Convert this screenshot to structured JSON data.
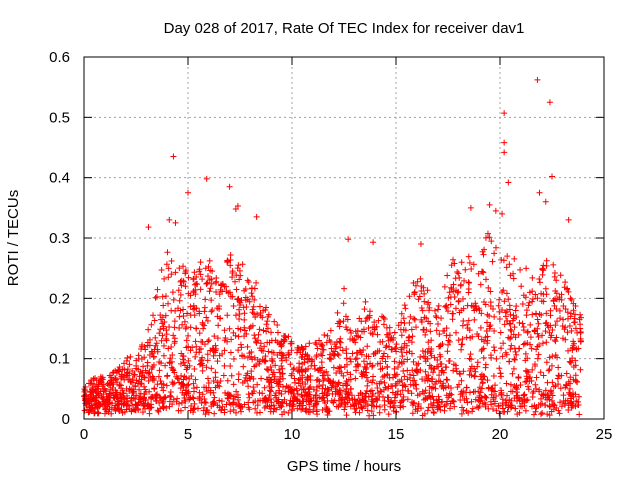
{
  "chart_data": {
    "type": "scatter",
    "title": "Day 028 of 2017, Rate Of TEC Index for receiver dav1",
    "xlabel": "GPS time / hours",
    "ylabel": "ROTI / TECUs",
    "xlim": [
      0,
      25
    ],
    "ylim": [
      0,
      0.6
    ],
    "xticks": [
      "0",
      "5",
      "10",
      "15",
      "20",
      "25"
    ],
    "yticks": [
      "0",
      "0.1",
      "0.2",
      "0.3",
      "0.4",
      "0.5",
      "0.6"
    ],
    "grid": true,
    "marker": "+",
    "color": "#ff0000",
    "envelope": [
      [
        0.0,
        0.06
      ],
      [
        0.5,
        0.07
      ],
      [
        1.0,
        0.07
      ],
      [
        1.5,
        0.08
      ],
      [
        2.0,
        0.1
      ],
      [
        2.5,
        0.11
      ],
      [
        3.0,
        0.15
      ],
      [
        3.5,
        0.22
      ],
      [
        4.0,
        0.28
      ],
      [
        4.5,
        0.26
      ],
      [
        5.0,
        0.25
      ],
      [
        5.5,
        0.27
      ],
      [
        6.0,
        0.27
      ],
      [
        6.5,
        0.22
      ],
      [
        7.0,
        0.28
      ],
      [
        7.5,
        0.26
      ],
      [
        8.0,
        0.26
      ],
      [
        8.5,
        0.2
      ],
      [
        9.0,
        0.17
      ],
      [
        9.5,
        0.15
      ],
      [
        10.0,
        0.13
      ],
      [
        10.5,
        0.12
      ],
      [
        11.0,
        0.13
      ],
      [
        11.5,
        0.14
      ],
      [
        12.0,
        0.15
      ],
      [
        12.5,
        0.22
      ],
      [
        13.0,
        0.14
      ],
      [
        13.5,
        0.2
      ],
      [
        14.0,
        0.17
      ],
      [
        14.5,
        0.17
      ],
      [
        15.0,
        0.15
      ],
      [
        15.5,
        0.2
      ],
      [
        16.0,
        0.25
      ],
      [
        16.5,
        0.22
      ],
      [
        17.0,
        0.18
      ],
      [
        17.5,
        0.25
      ],
      [
        18.0,
        0.28
      ],
      [
        18.5,
        0.28
      ],
      [
        19.0,
        0.3
      ],
      [
        19.5,
        0.31
      ],
      [
        20.0,
        0.3
      ],
      [
        20.5,
        0.27
      ],
      [
        21.0,
        0.26
      ],
      [
        21.5,
        0.24
      ],
      [
        22.0,
        0.26
      ],
      [
        22.5,
        0.27
      ],
      [
        23.0,
        0.25
      ],
      [
        23.5,
        0.2
      ],
      [
        23.9,
        0.17
      ]
    ],
    "highlights": [
      {
        "x": 4.3,
        "y": 0.435
      },
      {
        "x": 5.0,
        "y": 0.375
      },
      {
        "x": 5.9,
        "y": 0.398
      },
      {
        "x": 7.0,
        "y": 0.385
      },
      {
        "x": 7.4,
        "y": 0.353
      },
      {
        "x": 7.3,
        "y": 0.348
      },
      {
        "x": 8.3,
        "y": 0.335
      },
      {
        "x": 3.1,
        "y": 0.318
      },
      {
        "x": 4.1,
        "y": 0.33
      },
      {
        "x": 4.4,
        "y": 0.325
      },
      {
        "x": 12.7,
        "y": 0.298
      },
      {
        "x": 13.9,
        "y": 0.293
      },
      {
        "x": 16.2,
        "y": 0.29
      },
      {
        "x": 18.6,
        "y": 0.35
      },
      {
        "x": 19.5,
        "y": 0.355
      },
      {
        "x": 19.8,
        "y": 0.345
      },
      {
        "x": 20.2,
        "y": 0.507
      },
      {
        "x": 20.2,
        "y": 0.458
      },
      {
        "x": 20.2,
        "y": 0.442
      },
      {
        "x": 20.4,
        "y": 0.392
      },
      {
        "x": 20.1,
        "y": 0.34
      },
      {
        "x": 21.8,
        "y": 0.562
      },
      {
        "x": 22.4,
        "y": 0.525
      },
      {
        "x": 22.5,
        "y": 0.402
      },
      {
        "x": 21.9,
        "y": 0.375
      },
      {
        "x": 22.2,
        "y": 0.36
      },
      {
        "x": 23.3,
        "y": 0.33
      }
    ]
  }
}
